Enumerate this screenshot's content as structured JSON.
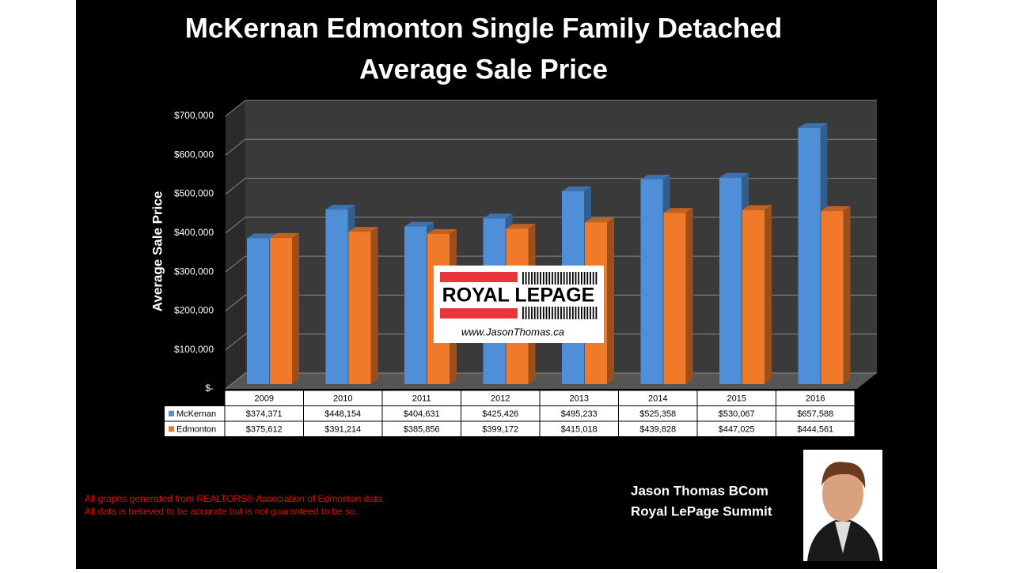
{
  "chart_data": {
    "type": "bar3d",
    "title": [
      "McKernan Edmonton Single Family Detached",
      "Average Sale Price"
    ],
    "y_label": "Average Sale Price",
    "categories": [
      "2009",
      "2010",
      "2011",
      "2012",
      "2013",
      "2014",
      "2015",
      "2016"
    ],
    "series": [
      {
        "name": "McKernan",
        "color": "#4f8fd8",
        "values": [
          374371,
          448154,
          404631,
          425426,
          495233,
          525358,
          530067,
          657588
        ],
        "value_labels": [
          "$374,371",
          "$448,154",
          "$404,631",
          "$425,426",
          "$495,233",
          "$525,358",
          "$530,067",
          "$657,588"
        ]
      },
      {
        "name": "Edmonton",
        "color": "#f07a2a",
        "values": [
          375612,
          391214,
          385856,
          399172,
          415018,
          439828,
          447025,
          444561
        ],
        "value_labels": [
          "$375,612",
          "$391,214",
          "$385,856",
          "$399,172",
          "$415,018",
          "$439,828",
          "$447,025",
          "$444,561"
        ]
      }
    ],
    "ylim": [
      0,
      700000
    ],
    "yticks": [
      {
        "value": 0,
        "label": "$-"
      },
      {
        "value": 100000,
        "label": "$100,000"
      },
      {
        "value": 200000,
        "label": "$200,000"
      },
      {
        "value": 300000,
        "label": "$300,000"
      },
      {
        "value": 400000,
        "label": "$400,000"
      },
      {
        "value": 500000,
        "label": "$500,000"
      },
      {
        "value": 600000,
        "label": "$600,000"
      },
      {
        "value": 700000,
        "label": "$700,000"
      }
    ],
    "grid": true,
    "logo": {
      "brand": "ROYAL LEPAGE",
      "url": "www.JasonThomas.ca"
    },
    "footnotes": [
      "All graphs generated from REALTORS® Association of Edmonton data",
      "All data is believed to be accurate but is not guaranteed to be so."
    ],
    "author": [
      "Jason Thomas BCom",
      "Royal LePage Summit"
    ]
  }
}
